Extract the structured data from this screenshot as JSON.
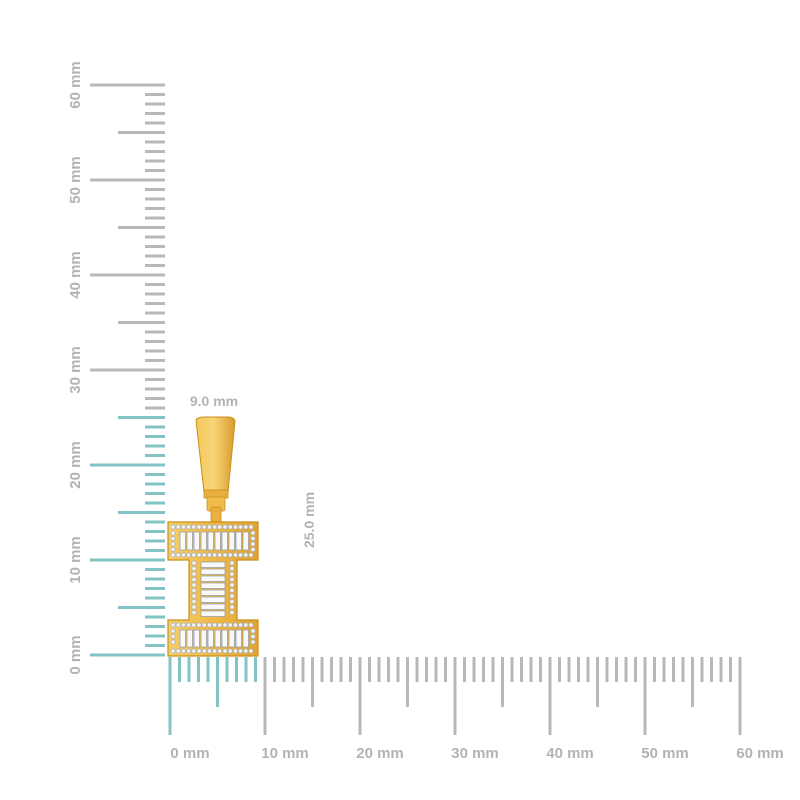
{
  "ruler": {
    "horizontal_labels": [
      "0 mm",
      "10 mm",
      "20 mm",
      "30 mm",
      "40 mm",
      "50 mm",
      "60 mm"
    ],
    "vertical_labels": [
      "0 mm",
      "10 mm",
      "20 mm",
      "30 mm",
      "40 mm",
      "50 mm",
      "60 mm"
    ],
    "max_mm": 60
  },
  "dimensions": {
    "width_label": "9.0 mm",
    "height_label": "25.0 mm",
    "width_mm": 9.0,
    "height_mm": 25.0
  },
  "colors": {
    "ruler_gray": "#b8b8b8",
    "highlight_teal": "#84c3c3",
    "gold": "#f2c04c",
    "gold_dark": "#c98f1c"
  }
}
